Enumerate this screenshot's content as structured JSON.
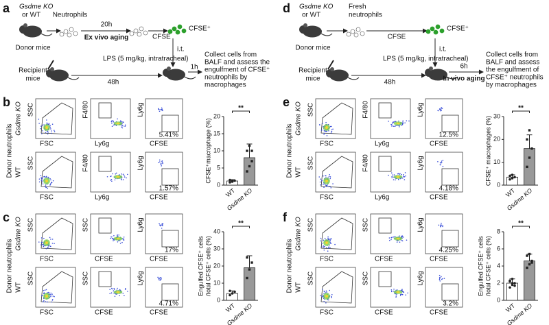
{
  "panel_a": {
    "letter": "a",
    "donor": [
      "Gsdme KO",
      "or WT"
    ],
    "donor_label": "Donor mice",
    "neutrophils": [
      "Neutrophils"
    ],
    "time": "20h",
    "aging": "Ex vivo aging",
    "stain": "CFSE",
    "stained": "CFSE⁺",
    "route": "i.t.",
    "recipient": [
      "Recipient",
      "mice"
    ],
    "lps": "LPS (5 mg/kg, intratracheal)",
    "duration": "48h",
    "wait": "1h",
    "readout": [
      "Collect cells from",
      "BALF and assess the",
      "engulfment of CFSE⁺",
      "neutrophils by",
      "macrophages"
    ]
  },
  "panel_d": {
    "letter": "d",
    "donor": [
      "Gsdme KO",
      "or WT"
    ],
    "donor_label": "Donor mice",
    "neutrophils": [
      "Fresh",
      "neutrophils"
    ],
    "stain": "CFSE",
    "stained": "CFSE⁺",
    "route": "i.t.",
    "recipient": [
      "Recipient",
      "mice"
    ],
    "lps": "LPS (5 mg/kg, intratracheal)",
    "duration": "48h",
    "wait": "6h",
    "aging": "In vivo aging",
    "readout": [
      "Collect cells from",
      "BALF and assess",
      "the engulfment of",
      "CFSE⁺ neutrophils",
      "by macrophages"
    ]
  },
  "flow": [
    {
      "letter": "b",
      "group": "Donor neutrophils",
      "rows": [
        "Gsdme KO",
        "WT"
      ],
      "plots": [
        {
          "x": "FSC",
          "y": "SSC"
        },
        {
          "x": "Ly6g",
          "y": "F4/80"
        },
        {
          "x": "CFSE",
          "y": "Ly6g"
        }
      ],
      "percent": [
        "5.41%",
        "1.57%"
      ]
    },
    {
      "letter": "c",
      "group": "Donor neutrophils",
      "rows": [
        "Gsdme KO",
        "WT"
      ],
      "plots": [
        {
          "x": "FSC",
          "y": "SSC"
        },
        {
          "x": "CFSE",
          "y": "SSC"
        },
        {
          "x": "CFSE",
          "y": "Ly6g"
        }
      ],
      "percent": [
        "17%",
        "4.71%"
      ]
    },
    {
      "letter": "e",
      "group": "Donor neutrophils",
      "rows": [
        "Gsdme KO",
        "WT"
      ],
      "plots": [
        {
          "x": "FSC",
          "y": "SSC"
        },
        {
          "x": "Ly6g",
          "y": "F4/80"
        },
        {
          "x": "CFSE",
          "y": "Ly6g"
        }
      ],
      "percent": [
        "12.5%",
        "4.18%"
      ]
    },
    {
      "letter": "f",
      "group": "Donor neutrophils",
      "rows": [
        "Gsdme KO",
        "WT"
      ],
      "plots": [
        {
          "x": "FSC",
          "y": "SSC"
        },
        {
          "x": "CFSE",
          "y": "SSC"
        },
        {
          "x": "CFSE",
          "y": "Ly6g"
        }
      ],
      "percent": [
        "4.25%",
        "3.2%"
      ]
    }
  ],
  "chart_data": [
    {
      "type": "bar",
      "ylabel": [
        "CFSE⁺macrophage (%)"
      ],
      "categories": [
        "WT",
        "Gsdme KO"
      ],
      "values": [
        1.2,
        8
      ],
      "errors": [
        0.4,
        4
      ],
      "points": [
        [
          0.8,
          1.0,
          1.3,
          1.5,
          1.2
        ],
        [
          4,
          5.5,
          7,
          10,
          11.5,
          10
        ]
      ],
      "significance": "**",
      "ylim": [
        0,
        20
      ],
      "yticks": [
        0,
        5,
        10,
        15,
        20
      ],
      "colors": [
        "#ffffff",
        "#999999"
      ]
    },
    {
      "type": "bar",
      "ylabel": [
        "Engulfed CFSE⁺ cells",
        "/total CFSE⁺ cells (%)"
      ],
      "categories": [
        "WT",
        "Gsdme KO"
      ],
      "values": [
        4,
        19
      ],
      "errors": [
        1.5,
        7
      ],
      "points": [
        [
          3,
          4,
          5,
          5.5
        ],
        [
          13,
          18,
          22,
          25
        ]
      ],
      "significance": "**",
      "ylim": [
        0,
        40
      ],
      "yticks": [
        0,
        10,
        20,
        30,
        40
      ],
      "colors": [
        "#ffffff",
        "#999999"
      ]
    },
    {
      "type": "bar",
      "ylabel": [
        "CFSE⁺ macrophages (%)"
      ],
      "categories": [
        "WT",
        "Gsdme KO"
      ],
      "values": [
        3.5,
        16
      ],
      "errors": [
        1,
        6
      ],
      "points": [
        [
          2.5,
          3,
          3.5,
          4,
          4.5
        ],
        [
          8,
          12,
          16,
          20,
          24
        ]
      ],
      "significance": "**",
      "ylim": [
        0,
        30
      ],
      "yticks": [
        0,
        10,
        20,
        30
      ],
      "colors": [
        "#ffffff",
        "#999999"
      ]
    },
    {
      "type": "bar",
      "ylabel": [
        "Engulfed CFSE⁺ cells",
        "/total CFSE⁺ cells (%)"
      ],
      "categories": [
        "WT",
        "Gsdme KO"
      ],
      "values": [
        2,
        4.6
      ],
      "errors": [
        0.5,
        0.8
      ],
      "points": [
        [
          1.5,
          1.8,
          2,
          2.2,
          2.5,
          1.7,
          2.3,
          2
        ],
        [
          3.8,
          4.2,
          4.6,
          5.2,
          5.4,
          4.4
        ]
      ],
      "significance": "**",
      "ylim": [
        0,
        8
      ],
      "yticks": [
        0,
        2,
        4,
        6,
        8
      ],
      "colors": [
        "#ffffff",
        "#999999"
      ]
    }
  ]
}
